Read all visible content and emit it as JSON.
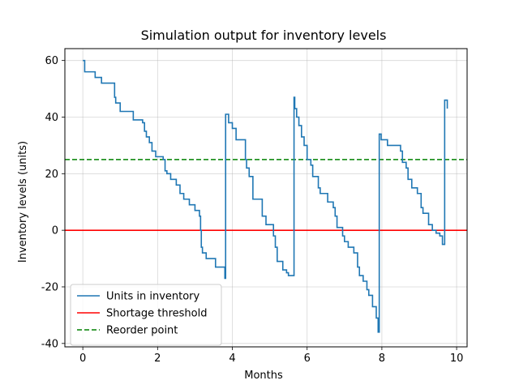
{
  "chart_data": {
    "type": "line",
    "title": "Simulation output for inventory levels",
    "xlabel": "Months",
    "ylabel": "Inventory levels (units)",
    "xlim": [
      -0.48,
      10.28
    ],
    "ylim": [
      -41.2,
      64.2
    ],
    "xticks": [
      0,
      2,
      4,
      6,
      8,
      10
    ],
    "yticks": [
      -40,
      -20,
      0,
      20,
      40,
      60
    ],
    "grid": true,
    "legend_position": "lower-left",
    "series": [
      {
        "name": "Units in inventory",
        "style": "step",
        "color": "#1f77b4",
        "x": [
          0,
          0.05,
          0.33,
          0.5,
          0.85,
          0.88,
          1.0,
          1.1,
          1.35,
          1.6,
          1.65,
          1.7,
          1.78,
          1.85,
          1.95,
          2.15,
          2.2,
          2.25,
          2.35,
          2.5,
          2.6,
          2.7,
          2.85,
          3.0,
          3.12,
          3.15,
          3.17,
          3.2,
          3.3,
          3.55,
          3.8,
          3.82,
          3.9,
          4.0,
          4.1,
          4.35,
          4.38,
          4.45,
          4.55,
          4.8,
          4.9,
          5.1,
          5.15,
          5.2,
          5.35,
          5.45,
          5.5,
          5.65,
          5.67,
          5.72,
          5.78,
          5.85,
          5.92,
          6.0,
          6.1,
          6.15,
          6.3,
          6.35,
          6.55,
          6.7,
          6.75,
          6.8,
          6.95,
          7.0,
          7.1,
          7.25,
          7.35,
          7.4,
          7.5,
          7.6,
          7.65,
          7.75,
          7.85,
          7.9,
          7.93,
          7.98,
          8.15,
          8.5,
          8.55,
          8.65,
          8.7,
          8.8,
          8.95,
          9.05,
          9.1,
          9.25,
          9.35,
          9.45,
          9.55,
          9.62,
          9.68,
          9.75
        ],
        "y": [
          60,
          56,
          54,
          52,
          47,
          45,
          42,
          42,
          39,
          38,
          35,
          33,
          31,
          28,
          26,
          25,
          21,
          20,
          18,
          16,
          13,
          11,
          9,
          7,
          5,
          0,
          -6,
          -8,
          -10,
          -13,
          -17,
          41,
          38,
          36,
          32,
          25,
          22,
          19,
          11,
          5,
          2,
          -2,
          -6,
          -11,
          -14,
          -15,
          -16,
          47,
          43,
          40,
          37,
          33,
          30,
          25,
          23,
          19,
          15,
          13,
          10,
          8,
          5,
          1,
          -2,
          -4,
          -6,
          -8,
          -13,
          -16,
          -18,
          -21,
          -23,
          -27,
          -31,
          -36,
          34,
          32,
          30,
          28,
          24,
          22,
          18,
          15,
          13,
          8,
          6,
          2,
          0,
          -1,
          -2,
          -5,
          46,
          43
        ]
      },
      {
        "name": "Shortage threshold",
        "style": "solid",
        "color": "#ff0000",
        "y_constant": 0
      },
      {
        "name": "Reorder point",
        "style": "dashed",
        "color": "#008000",
        "y_constant": 25
      }
    ]
  }
}
